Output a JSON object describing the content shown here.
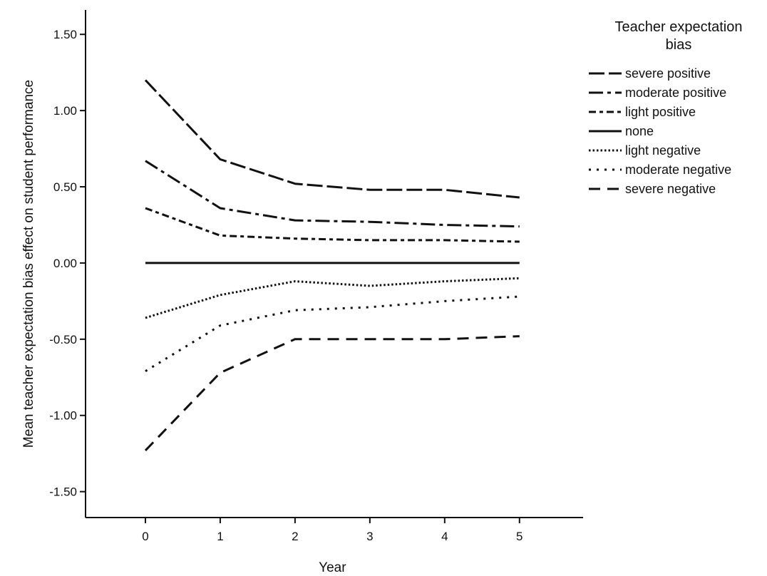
{
  "chart_data": {
    "type": "line",
    "xlabel": "Year",
    "ylabel": "Mean teacher expectation bias effect on student performance",
    "x": [
      0,
      1,
      2,
      3,
      4,
      5
    ],
    "x_tick_labels": [
      "0",
      "1",
      "2",
      "3",
      "4",
      "5"
    ],
    "xlim": [
      -0.8,
      5.85
    ],
    "ylim": [
      -1.67,
      1.66
    ],
    "y_ticks": [
      1.5,
      1.0,
      0.5,
      0.0,
      -0.5,
      -1.0,
      -1.5
    ],
    "y_tick_labels": [
      "1.50",
      "1.00",
      "0.50",
      "0.00",
      "-0.50",
      "-1.00",
      "-1.50"
    ],
    "grid": false,
    "legend": {
      "title_lines": [
        "Teacher expectation",
        "bias"
      ],
      "placement": "right"
    },
    "series": [
      {
        "name": "severe positive",
        "dash": "severe-positive",
        "values": [
          1.2,
          0.68,
          0.52,
          0.48,
          0.48,
          0.43
        ]
      },
      {
        "name": "moderate positive",
        "dash": "moderate-positive",
        "values": [
          0.67,
          0.36,
          0.28,
          0.27,
          0.25,
          0.24
        ]
      },
      {
        "name": "light positive",
        "dash": "light-positive",
        "values": [
          0.36,
          0.18,
          0.16,
          0.15,
          0.15,
          0.14
        ]
      },
      {
        "name": "none",
        "dash": "none",
        "values": [
          0.0,
          0.0,
          0.0,
          0.0,
          0.0,
          0.0
        ]
      },
      {
        "name": "light negative",
        "dash": "light-negative",
        "values": [
          -0.36,
          -0.21,
          -0.12,
          -0.15,
          -0.12,
          -0.1
        ]
      },
      {
        "name": "moderate negative",
        "dash": "moderate-negative",
        "values": [
          -0.71,
          -0.41,
          -0.31,
          -0.29,
          -0.25,
          -0.22
        ]
      },
      {
        "name": "severe negative",
        "dash": "severe-negative",
        "values": [
          -1.23,
          -0.72,
          -0.5,
          -0.5,
          -0.5,
          -0.48
        ]
      }
    ]
  }
}
